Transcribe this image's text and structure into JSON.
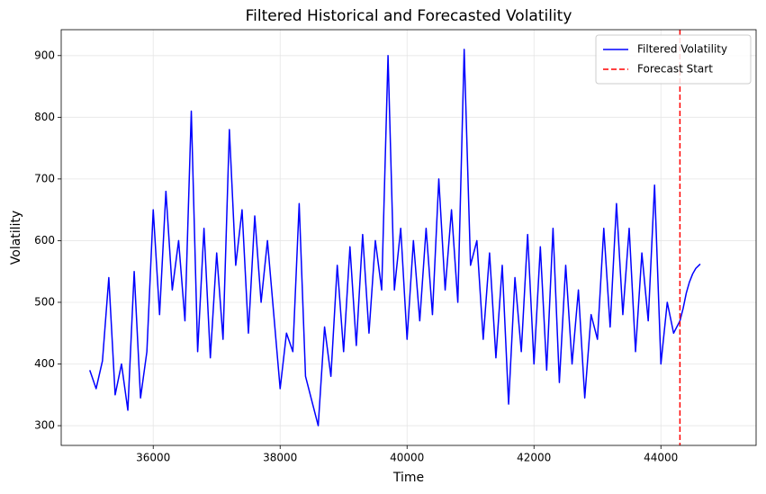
{
  "chart_data": {
    "type": "line",
    "title": "Filtered Historical and Forecasted Volatility",
    "x_label": "Time",
    "y_label": "Volatility",
    "x": [
      35000,
      35100,
      35200,
      35300,
      35400,
      35500,
      35600,
      35700,
      35800,
      35900,
      36000,
      36100,
      36200,
      36300,
      36400,
      36500,
      36600,
      36700,
      36800,
      36900,
      37000,
      37100,
      37200,
      37300,
      37400,
      37500,
      37600,
      37700,
      37800,
      37900,
      38000,
      38100,
      38200,
      38300,
      38400,
      38500,
      38600,
      38700,
      38800,
      38900,
      39000,
      39100,
      39200,
      39300,
      39400,
      39500,
      39600,
      39700,
      39800,
      39900,
      40000,
      40100,
      40200,
      40300,
      40400,
      40500,
      40600,
      40700,
      40800,
      40900,
      41000,
      41100,
      41200,
      41300,
      41400,
      41500,
      41600,
      41700,
      41800,
      41900,
      42000,
      42100,
      42200,
      42300,
      42400,
      42500,
      42600,
      42700,
      42800,
      42900,
      43000,
      43100,
      43200,
      43300,
      43400,
      43500,
      43600,
      43700,
      43800,
      43900,
      44000,
      44100,
      44200,
      44300,
      44350,
      44400,
      44450,
      44500,
      44550,
      44600,
      44620
    ],
    "series": [
      {
        "name": "Filtered Volatility",
        "color": "#0000ff",
        "values": [
          390,
          360,
          405,
          540,
          350,
          400,
          325,
          550,
          345,
          420,
          650,
          480,
          680,
          520,
          600,
          470,
          810,
          420,
          620,
          410,
          580,
          440,
          780,
          560,
          650,
          450,
          640,
          500,
          600,
          480,
          360,
          450,
          420,
          660,
          380,
          340,
          300,
          460,
          380,
          560,
          420,
          590,
          430,
          610,
          450,
          600,
          520,
          900,
          520,
          620,
          440,
          600,
          470,
          620,
          480,
          700,
          520,
          650,
          500,
          910,
          560,
          600,
          440,
          580,
          410,
          560,
          335,
          540,
          420,
          610,
          400,
          590,
          390,
          620,
          370,
          560,
          400,
          520,
          345,
          480,
          440,
          620,
          460,
          660,
          480,
          620,
          420,
          580,
          470,
          690,
          400,
          500,
          450,
          470,
          490,
          515,
          533,
          546,
          555,
          560,
          562
        ]
      }
    ],
    "vlines": [
      {
        "name": "Forecast Start",
        "color": "#ff0000",
        "x": 44300,
        "dashed": true
      }
    ],
    "xlim": [
      34550,
      45500
    ],
    "ylim": [
      268,
      942
    ],
    "xticks": [
      36000,
      38000,
      40000,
      42000,
      44000
    ],
    "yticks": [
      300,
      400,
      500,
      600,
      700,
      800,
      900
    ],
    "grid": true,
    "legend": "upper-right"
  }
}
